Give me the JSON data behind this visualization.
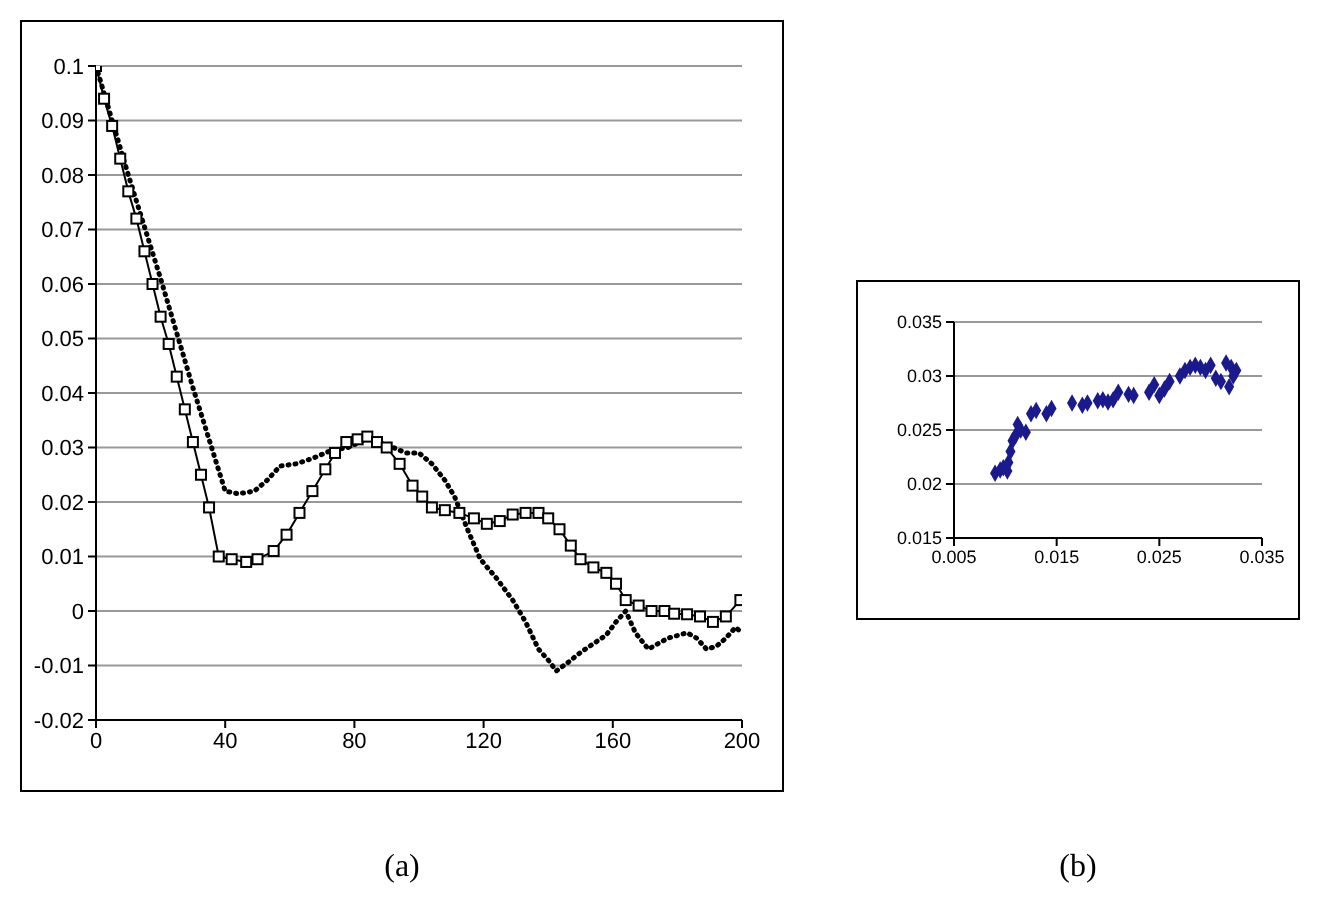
{
  "chart_data": [
    {
      "type": "line",
      "xlim": [
        0,
        200
      ],
      "xticks": [
        0,
        40,
        80,
        120,
        160,
        200
      ],
      "ylim": [
        -0.02,
        0.1
      ],
      "yticks": [
        -0.02,
        -0.01,
        0,
        0.01,
        0.02,
        0.03,
        0.04,
        0.05,
        0.06,
        0.07,
        0.08,
        0.09,
        0.1
      ],
      "grid": "y",
      "annotations": [
        "(a)"
      ],
      "series": [
        {
          "color": "#000000",
          "marker": "square",
          "line_style": "solid",
          "x": [
            0,
            2.5,
            5,
            7.5,
            10,
            12.5,
            15,
            17.5,
            20,
            22.5,
            25,
            27.5,
            30,
            32.5,
            35,
            38,
            42,
            46.5,
            50,
            55,
            59,
            63,
            67,
            71,
            74,
            77.5,
            81,
            84,
            87,
            90,
            94,
            98,
            101,
            104,
            108,
            112.5,
            117,
            121,
            125,
            129,
            133,
            137,
            140,
            143.5,
            147,
            150,
            154,
            158,
            161,
            164,
            168,
            172,
            176,
            179,
            183,
            187,
            191,
            195,
            199.5
          ],
          "values": [
            0.1,
            0.094,
            0.089,
            0.083,
            0.077,
            0.072,
            0.066,
            0.06,
            0.054,
            0.049,
            0.043,
            0.037,
            0.031,
            0.025,
            0.019,
            0.01,
            0.0095,
            0.009,
            0.0095,
            0.011,
            0.014,
            0.018,
            0.022,
            0.026,
            0.029,
            0.031,
            0.0315,
            0.032,
            0.031,
            0.03,
            0.027,
            0.023,
            0.021,
            0.019,
            0.0185,
            0.018,
            0.017,
            0.016,
            0.0165,
            0.0177,
            0.018,
            0.018,
            0.017,
            0.015,
            0.012,
            0.0095,
            0.008,
            0.007,
            0.005,
            0.002,
            0.001,
            0,
            0,
            -0.0005,
            -0.0006,
            -0.001,
            -0.002,
            -0.001,
            0.002
          ]
        },
        {
          "color": "#000000",
          "marker": "none",
          "line_style": "dotted",
          "x": [
            0,
            10,
            20,
            30,
            40,
            44,
            49,
            53,
            57,
            62,
            67,
            73,
            78,
            84,
            90,
            96,
            100,
            104,
            108,
            111,
            115,
            119,
            124,
            129,
            133,
            137,
            140,
            142.5,
            146,
            150,
            154,
            158,
            161,
            164,
            167,
            171,
            174,
            177,
            180,
            183,
            186,
            189,
            192,
            195,
            198,
            200
          ],
          "values": [
            0.1,
            0.08,
            0.061,
            0.041,
            0.022,
            0.0215,
            0.022,
            0.024,
            0.0266,
            0.027,
            0.028,
            0.0295,
            0.03,
            0.0316,
            0.0305,
            0.029,
            0.029,
            0.027,
            0.024,
            0.021,
            0.015,
            0.0095,
            0.006,
            0.002,
            -0.002,
            -0.007,
            -0.009,
            -0.011,
            -0.0095,
            -0.0076,
            -0.006,
            -0.0044,
            -0.002,
            0,
            -0.004,
            -0.007,
            -0.006,
            -0.005,
            -0.0045,
            -0.004,
            -0.005,
            -0.007,
            -0.0065,
            -0.005,
            -0.003,
            -0.004
          ]
        }
      ]
    },
    {
      "type": "scatter",
      "xlim": [
        0.005,
        0.035
      ],
      "xticks": [
        0.005,
        0.015,
        0.025,
        0.035
      ],
      "ylim": [
        0.015,
        0.035
      ],
      "yticks": [
        0.015,
        0.02,
        0.025,
        0.03,
        0.035
      ],
      "grid": "y",
      "marker": "diamond",
      "annotations": [
        "(b)"
      ],
      "series": [
        {
          "color": "#1a1a8c",
          "x": [
            0.009,
            0.0095,
            0.0098,
            0.0102,
            0.0103,
            0.0105,
            0.0107,
            0.011,
            0.0112,
            0.0115,
            0.012,
            0.0125,
            0.013,
            0.014,
            0.0145,
            0.0165,
            0.0175,
            0.018,
            0.019,
            0.0195,
            0.02,
            0.0205,
            0.021,
            0.022,
            0.0225,
            0.024,
            0.0245,
            0.025,
            0.0255,
            0.026,
            0.027,
            0.0275,
            0.028,
            0.0285,
            0.029,
            0.0295,
            0.03,
            0.0305,
            0.031,
            0.0315,
            0.032,
            0.0325,
            0.0318,
            0.0322
          ],
          "values": [
            0.021,
            0.0213,
            0.0215,
            0.0212,
            0.022,
            0.023,
            0.024,
            0.0245,
            0.0255,
            0.025,
            0.0248,
            0.0265,
            0.0268,
            0.0265,
            0.027,
            0.0275,
            0.0273,
            0.0275,
            0.0277,
            0.0278,
            0.0276,
            0.0278,
            0.0285,
            0.0283,
            0.0282,
            0.0285,
            0.0292,
            0.0282,
            0.0288,
            0.0295,
            0.03,
            0.0305,
            0.0308,
            0.031,
            0.0308,
            0.0305,
            0.031,
            0.0298,
            0.0295,
            0.0312,
            0.0308,
            0.0305,
            0.029,
            0.03
          ]
        }
      ]
    }
  ]
}
